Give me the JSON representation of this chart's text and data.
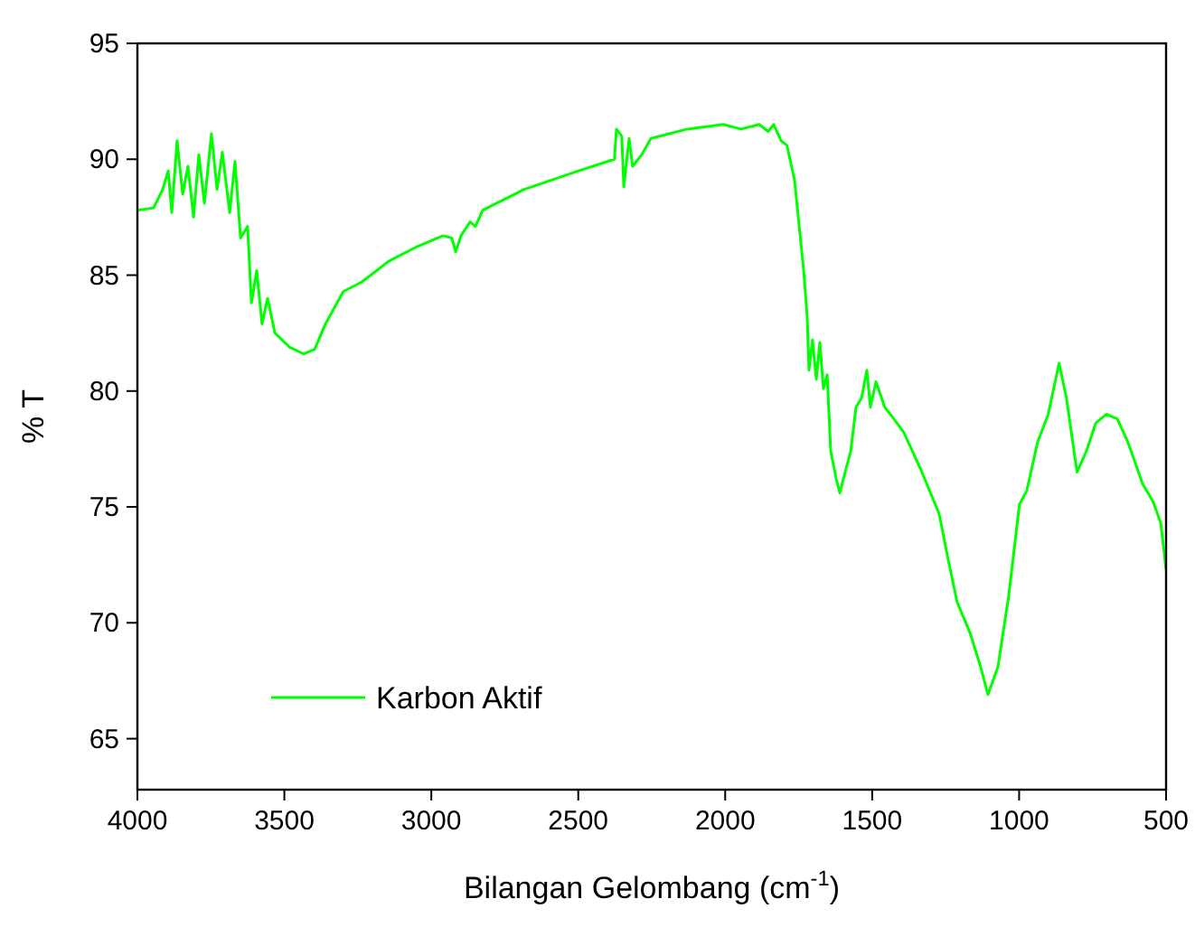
{
  "chart_data": {
    "type": "line",
    "xlabel": "Bilangan Gelombang (cm$^{-1}$)",
    "ylabel": "% T",
    "xlim": [
      4000,
      500
    ],
    "ylim": [
      62.8,
      95
    ],
    "xticks": [
      4000,
      3500,
      3000,
      2500,
      2000,
      1500,
      1000,
      500
    ],
    "yticks": [
      65,
      70,
      75,
      80,
      85,
      90,
      95
    ],
    "grid": false,
    "legend": "bottom left",
    "marker": "none",
    "line_style": "solid",
    "series": [
      {
        "name": "Karbon Aktif",
        "color": "#00ff00",
        "x": [
          4000,
          3945,
          3914,
          3895,
          3883,
          3865,
          3846,
          3828,
          3809,
          3791,
          3772,
          3748,
          3729,
          3711,
          3686,
          3668,
          3649,
          3625,
          3612,
          3594,
          3576,
          3557,
          3532,
          3483,
          3434,
          3397,
          3360,
          3299,
          3237,
          3145,
          3053,
          2960,
          2930,
          2917,
          2899,
          2868,
          2850,
          2825,
          2684,
          2499,
          2377,
          2370,
          2352,
          2345,
          2327,
          2315,
          2284,
          2253,
          2130,
          2007,
          1946,
          1884,
          1854,
          1835,
          1810,
          1790,
          1764,
          1745,
          1733,
          1721,
          1715,
          1703,
          1690,
          1678,
          1666,
          1653,
          1641,
          1622,
          1610,
          1592,
          1573,
          1555,
          1536,
          1518,
          1506,
          1487,
          1457,
          1426,
          1392,
          1334,
          1272,
          1241,
          1211,
          1168,
          1131,
          1106,
          1072,
          1035,
          999,
          974,
          937,
          901,
          864,
          839,
          803,
          771,
          740,
          703,
          666,
          630,
          580,
          543,
          518,
          500
        ],
        "values": [
          87.8,
          87.9,
          88.7,
          89.5,
          87.7,
          90.8,
          88.5,
          89.7,
          87.5,
          90.2,
          88.1,
          91.1,
          88.7,
          90.3,
          87.7,
          89.9,
          86.6,
          87.1,
          83.8,
          85.2,
          82.9,
          84.0,
          82.5,
          81.9,
          81.6,
          81.8,
          82.9,
          84.3,
          84.7,
          85.6,
          86.2,
          86.7,
          86.6,
          86.0,
          86.7,
          87.3,
          87.1,
          87.8,
          88.7,
          89.5,
          90.0,
          91.3,
          91.0,
          88.8,
          90.9,
          89.7,
          90.2,
          90.9,
          91.3,
          91.5,
          91.3,
          91.5,
          91.2,
          91.5,
          90.8,
          90.6,
          89.1,
          86.7,
          85.2,
          83.2,
          80.9,
          82.2,
          80.5,
          82.1,
          80.1,
          80.7,
          77.4,
          76.2,
          75.6,
          76.5,
          77.4,
          79.3,
          79.7,
          80.9,
          79.3,
          80.4,
          79.3,
          78.8,
          78.2,
          76.6,
          74.7,
          72.7,
          70.9,
          69.6,
          68.1,
          66.9,
          68.1,
          71.2,
          75.1,
          75.7,
          77.8,
          79.0,
          81.2,
          79.7,
          76.5,
          77.4,
          78.6,
          79.0,
          78.8,
          77.8,
          76.0,
          75.2,
          74.3,
          72.3
        ]
      }
    ]
  }
}
